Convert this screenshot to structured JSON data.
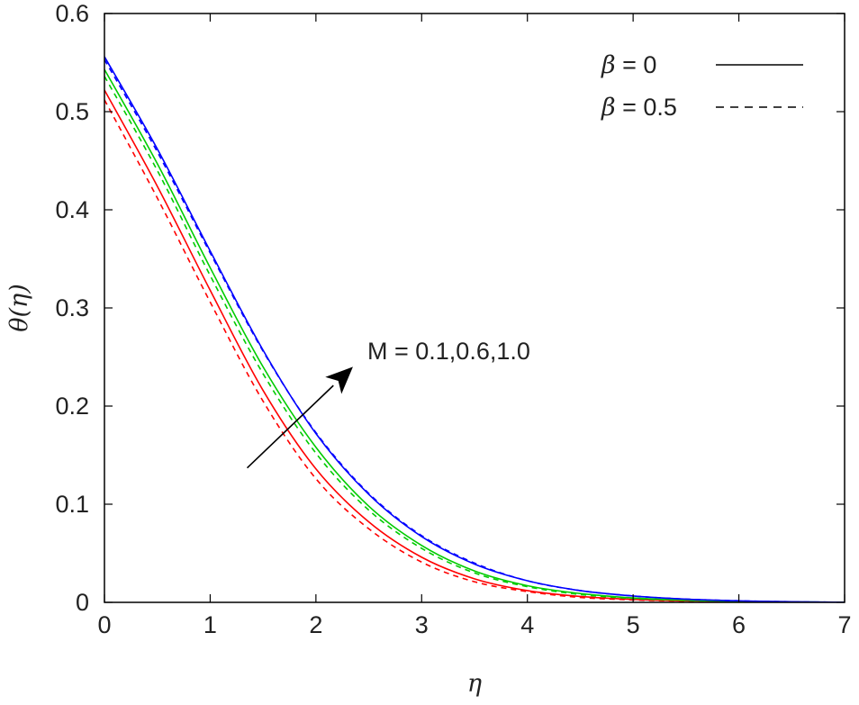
{
  "chart_data": {
    "type": "line",
    "xlabel": "η",
    "ylabel": "θ(η)",
    "xlim": [
      0,
      7
    ],
    "ylim": [
      0,
      0.6
    ],
    "xticks": [
      0,
      1,
      2,
      3,
      4,
      5,
      6,
      7
    ],
    "xtick_labels": [
      "0",
      "1",
      "2",
      "3",
      "4",
      "5",
      "6",
      "7"
    ],
    "yticks": [
      0,
      0.1,
      0.2,
      0.3,
      0.4,
      0.5,
      0.6
    ],
    "ytick_labels": [
      "0",
      "0.1",
      "0.2",
      "0.3",
      "0.4",
      "0.5",
      "0.6"
    ],
    "grid": false,
    "legend": {
      "placement": "top-right",
      "entries": [
        {
          "symbol": "β",
          "text": " = 0",
          "style": "solid"
        },
        {
          "symbol": "β",
          "text": " = 0.5",
          "style": "dashed"
        }
      ]
    },
    "annotation": {
      "text": "M = 0.1,0.6,1.0",
      "arrow_from": [
        1.35,
        0.137
      ],
      "arrow_to": [
        2.35,
        0.24
      ]
    },
    "x": [
      0,
      0.5,
      1,
      1.5,
      2,
      2.5,
      3,
      3.5,
      4,
      4.5,
      5,
      5.5,
      6,
      6.5,
      7
    ],
    "series": [
      {
        "color": "#ff0000",
        "style": "solid",
        "values": [
          0.522,
          0.424,
          0.318,
          0.216,
          0.136,
          0.082,
          0.046,
          0.024,
          0.012,
          0.006,
          0.003,
          0.0015,
          0.0008,
          0.0003,
          0.0001
        ]
      },
      {
        "color": "#ff0000",
        "style": "dashed",
        "values": [
          0.512,
          0.412,
          0.306,
          0.205,
          0.126,
          0.075,
          0.041,
          0.021,
          0.011,
          0.005,
          0.0025,
          0.0012,
          0.0006,
          0.0002,
          0.0001
        ]
      },
      {
        "color": "#00cc00",
        "style": "solid",
        "values": [
          0.543,
          0.447,
          0.341,
          0.24,
          0.158,
          0.098,
          0.058,
          0.032,
          0.017,
          0.009,
          0.0045,
          0.0022,
          0.0011,
          0.0004,
          0.0001
        ]
      },
      {
        "color": "#00cc00",
        "style": "dashed",
        "values": [
          0.536,
          0.44,
          0.333,
          0.233,
          0.152,
          0.094,
          0.055,
          0.03,
          0.016,
          0.008,
          0.004,
          0.002,
          0.001,
          0.0004,
          0.0001
        ]
      },
      {
        "color": "#0000ff",
        "style": "solid",
        "values": [
          0.556,
          0.462,
          0.358,
          0.257,
          0.172,
          0.11,
          0.067,
          0.039,
          0.022,
          0.012,
          0.0065,
          0.0033,
          0.0016,
          0.0006,
          0.0001
        ]
      },
      {
        "color": "#0000ff",
        "style": "dashed",
        "values": [
          0.553,
          0.459,
          0.356,
          0.256,
          0.173,
          0.111,
          0.068,
          0.04,
          0.022,
          0.012,
          0.0065,
          0.0033,
          0.0016,
          0.0006,
          0.0001
        ]
      }
    ]
  }
}
